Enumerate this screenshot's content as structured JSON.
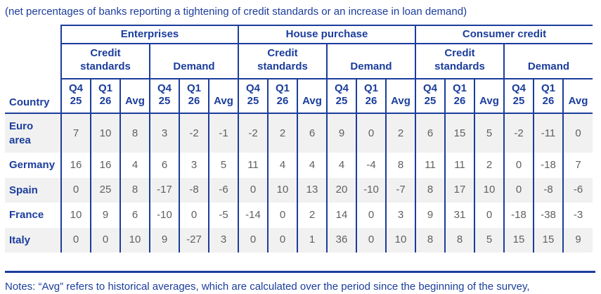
{
  "colors": {
    "accent_blue": "#1b3d9c",
    "number_gray": "#606060",
    "row_stripe": "#f1f1f1"
  },
  "chart_data": {
    "type": "table",
    "title": "(net percentages of banks reporting a tightening of credit standards or an increase in loan demand)",
    "row_header": "Country",
    "col_groups": [
      "Enterprises",
      "House purchase",
      "Consumer credit"
    ],
    "sub_groups": [
      "Credit\nstandards",
      "Demand"
    ],
    "period_cols": [
      "Q4\n25",
      "Q1\n26",
      "Avg"
    ],
    "column_order_note": "For each group: Credit standards (Q4 25, Q1 26, Avg) then Demand (Q4 25, Q1 26, Avg)",
    "rows": [
      {
        "country": "Euro\narea",
        "values": [
          7,
          10,
          8,
          3,
          -2,
          -1,
          -2,
          2,
          6,
          9,
          0,
          2,
          6,
          15,
          5,
          -2,
          -11,
          0
        ]
      },
      {
        "country": "Germany",
        "values": [
          16,
          16,
          4,
          6,
          3,
          5,
          11,
          4,
          4,
          4,
          -4,
          8,
          11,
          11,
          2,
          0,
          -18,
          7
        ]
      },
      {
        "country": "Spain",
        "values": [
          0,
          25,
          8,
          -17,
          -8,
          -6,
          0,
          10,
          13,
          20,
          -10,
          -7,
          8,
          17,
          10,
          0,
          -8,
          -6
        ]
      },
      {
        "country": "France",
        "values": [
          10,
          9,
          6,
          -10,
          0,
          -5,
          -14,
          0,
          2,
          14,
          0,
          3,
          9,
          31,
          0,
          -18,
          -38,
          -3
        ]
      },
      {
        "country": "Italy",
        "values": [
          0,
          0,
          10,
          9,
          -27,
          3,
          0,
          0,
          1,
          36,
          0,
          10,
          8,
          8,
          5,
          15,
          15,
          9
        ]
      }
    ],
    "notes": "Notes: “Avg” refers to historical averages, which are calculated over the period since the beginning of the survey,"
  }
}
